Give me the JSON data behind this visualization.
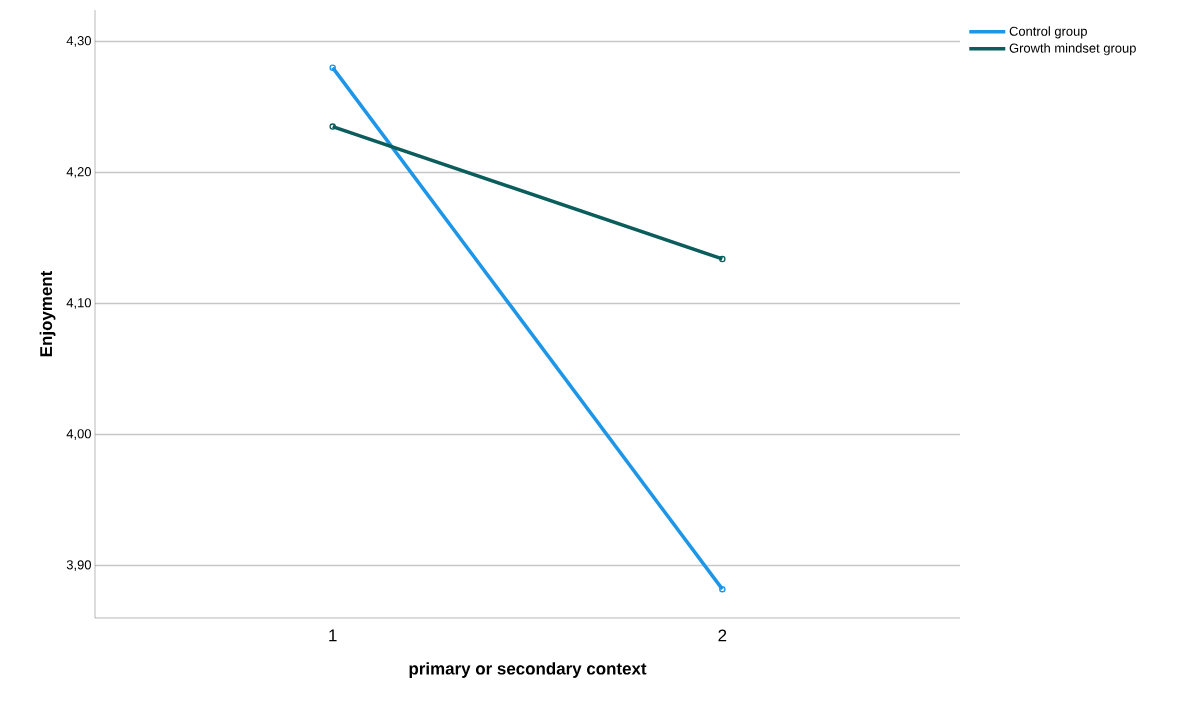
{
  "chart_data": {
    "type": "line",
    "xlabel": "primary or secondary context",
    "ylabel": "Enjoyment",
    "categories": [
      "1",
      "2"
    ],
    "series": [
      {
        "name": "Control group",
        "color": "#1e96e8",
        "values": [
          4.28,
          3.882
        ]
      },
      {
        "name": "Growth mindset group",
        "color": "#0b5d5c",
        "values": [
          4.235,
          4.134
        ]
      }
    ],
    "ylim": [
      3.86,
      4.324
    ],
    "yticks": [
      {
        "value": 3.9,
        "label": "3,90"
      },
      {
        "value": 4.0,
        "label": "4,00"
      },
      {
        "value": 4.1,
        "label": "4,10"
      },
      {
        "value": 4.2,
        "label": "4,20"
      },
      {
        "value": 4.3,
        "label": "4,30"
      }
    ],
    "grid": "y",
    "legend": "top right",
    "marker": "circle",
    "line_style": "solid"
  }
}
